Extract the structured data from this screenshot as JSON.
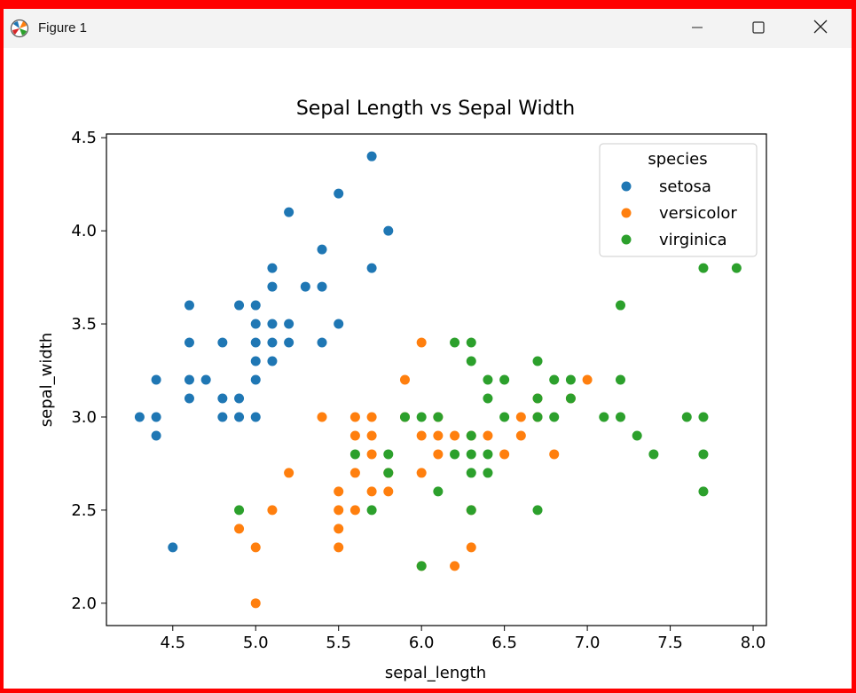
{
  "window": {
    "title": "Figure 1",
    "icon": "matplotlib-icon",
    "controls": [
      "minimize-icon",
      "maximize-icon",
      "close-icon"
    ]
  },
  "colors": {
    "setosa": "#1f77b4",
    "versicolor": "#ff7f0e",
    "virginica": "#2ca02c",
    "frame": "#ff0000"
  },
  "chart_data": {
    "type": "scatter",
    "title": "Sepal Length vs Sepal Width",
    "xlabel": "sepal_length",
    "ylabel": "sepal_width",
    "xlim": [
      4.1,
      8.08
    ],
    "ylim": [
      1.88,
      4.52
    ],
    "xticks": [
      4.5,
      5.0,
      5.5,
      6.0,
      6.5,
      7.0,
      7.5,
      8.0
    ],
    "yticks": [
      2.0,
      2.5,
      3.0,
      3.5,
      4.0,
      4.5
    ],
    "legend": {
      "title": "species",
      "placement": "top-right"
    },
    "series": [
      {
        "name": "setosa",
        "points": [
          [
            4.3,
            3.0
          ],
          [
            4.4,
            3.2
          ],
          [
            4.4,
            3.0
          ],
          [
            4.4,
            2.9
          ],
          [
            4.5,
            2.3
          ],
          [
            4.6,
            3.6
          ],
          [
            4.6,
            3.4
          ],
          [
            4.6,
            3.2
          ],
          [
            4.6,
            3.1
          ],
          [
            4.7,
            3.2
          ],
          [
            4.8,
            3.4
          ],
          [
            4.8,
            3.1
          ],
          [
            4.8,
            3.0
          ],
          [
            4.9,
            3.6
          ],
          [
            4.9,
            3.1
          ],
          [
            4.9,
            3.0
          ],
          [
            5.0,
            3.6
          ],
          [
            5.0,
            3.5
          ],
          [
            5.0,
            3.4
          ],
          [
            5.0,
            3.3
          ],
          [
            5.0,
            3.2
          ],
          [
            5.0,
            3.0
          ],
          [
            5.1,
            3.8
          ],
          [
            5.1,
            3.7
          ],
          [
            5.1,
            3.5
          ],
          [
            5.1,
            3.4
          ],
          [
            5.1,
            3.3
          ],
          [
            5.2,
            4.1
          ],
          [
            5.2,
            3.5
          ],
          [
            5.2,
            3.4
          ],
          [
            5.3,
            3.7
          ],
          [
            5.4,
            3.9
          ],
          [
            5.4,
            3.7
          ],
          [
            5.4,
            3.4
          ],
          [
            5.5,
            4.2
          ],
          [
            5.5,
            3.5
          ],
          [
            5.7,
            4.4
          ],
          [
            5.7,
            3.8
          ],
          [
            5.8,
            4.0
          ]
        ]
      },
      {
        "name": "versicolor",
        "points": [
          [
            4.9,
            2.4
          ],
          [
            5.0,
            2.3
          ],
          [
            5.0,
            2.0
          ],
          [
            5.1,
            2.5
          ],
          [
            5.2,
            2.7
          ],
          [
            5.4,
            3.0
          ],
          [
            5.5,
            2.6
          ],
          [
            5.5,
            2.5
          ],
          [
            5.5,
            2.4
          ],
          [
            5.5,
            2.3
          ],
          [
            5.6,
            3.0
          ],
          [
            5.6,
            2.9
          ],
          [
            5.6,
            2.7
          ],
          [
            5.6,
            2.5
          ],
          [
            5.7,
            3.0
          ],
          [
            5.7,
            2.9
          ],
          [
            5.7,
            2.8
          ],
          [
            5.7,
            2.6
          ],
          [
            5.8,
            2.6
          ],
          [
            5.8,
            2.7
          ],
          [
            5.9,
            3.2
          ],
          [
            5.9,
            3.0
          ],
          [
            6.0,
            3.4
          ],
          [
            6.0,
            2.9
          ],
          [
            6.0,
            2.7
          ],
          [
            6.0,
            2.2
          ],
          [
            6.1,
            3.0
          ],
          [
            6.1,
            2.9
          ],
          [
            6.1,
            2.8
          ],
          [
            6.2,
            2.9
          ],
          [
            6.2,
            2.2
          ],
          [
            6.3,
            2.9
          ],
          [
            6.3,
            2.5
          ],
          [
            6.3,
            2.3
          ],
          [
            6.4,
            2.9
          ],
          [
            6.5,
            2.8
          ],
          [
            6.6,
            3.0
          ],
          [
            6.6,
            2.9
          ],
          [
            6.7,
            3.1
          ],
          [
            6.7,
            3.0
          ],
          [
            6.8,
            2.8
          ],
          [
            6.9,
            3.1
          ],
          [
            7.0,
            3.2
          ]
        ]
      },
      {
        "name": "virginica",
        "points": [
          [
            4.9,
            2.5
          ],
          [
            5.6,
            2.8
          ],
          [
            5.7,
            2.5
          ],
          [
            5.8,
            2.8
          ],
          [
            5.8,
            2.7
          ],
          [
            5.9,
            3.0
          ],
          [
            6.0,
            3.0
          ],
          [
            6.0,
            2.2
          ],
          [
            6.1,
            3.0
          ],
          [
            6.1,
            2.6
          ],
          [
            6.2,
            3.4
          ],
          [
            6.2,
            2.8
          ],
          [
            6.3,
            3.4
          ],
          [
            6.3,
            3.3
          ],
          [
            6.3,
            2.9
          ],
          [
            6.3,
            2.8
          ],
          [
            6.3,
            2.7
          ],
          [
            6.3,
            2.5
          ],
          [
            6.4,
            3.2
          ],
          [
            6.4,
            3.1
          ],
          [
            6.4,
            2.8
          ],
          [
            6.4,
            2.7
          ],
          [
            6.5,
            3.2
          ],
          [
            6.5,
            3.0
          ],
          [
            6.7,
            3.3
          ],
          [
            6.7,
            3.1
          ],
          [
            6.7,
            3.0
          ],
          [
            6.7,
            2.5
          ],
          [
            6.8,
            3.2
          ],
          [
            6.8,
            3.0
          ],
          [
            6.9,
            3.2
          ],
          [
            6.9,
            3.1
          ],
          [
            7.1,
            3.0
          ],
          [
            7.2,
            3.6
          ],
          [
            7.2,
            3.2
          ],
          [
            7.2,
            3.0
          ],
          [
            7.3,
            2.9
          ],
          [
            7.4,
            2.8
          ],
          [
            7.6,
            3.0
          ],
          [
            7.7,
            3.8
          ],
          [
            7.7,
            3.0
          ],
          [
            7.7,
            2.8
          ],
          [
            7.7,
            2.6
          ],
          [
            7.9,
            3.8
          ]
        ]
      }
    ]
  }
}
